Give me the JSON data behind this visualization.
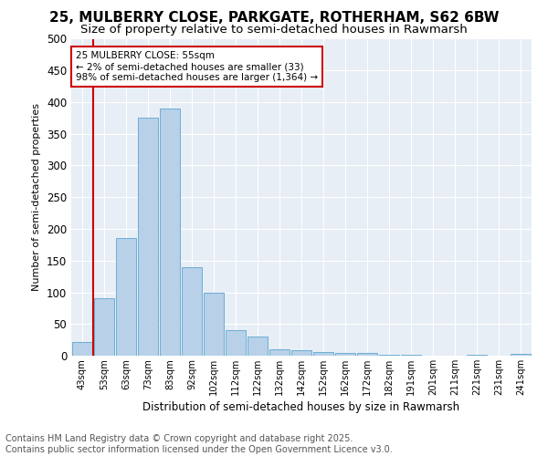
{
  "title1": "25, MULBERRY CLOSE, PARKGATE, ROTHERHAM, S62 6BW",
  "title2": "Size of property relative to semi-detached houses in Rawmarsh",
  "xlabel": "Distribution of semi-detached houses by size in Rawmarsh",
  "ylabel": "Number of semi-detached properties",
  "categories": [
    "43sqm",
    "53sqm",
    "63sqm",
    "73sqm",
    "83sqm",
    "92sqm",
    "102sqm",
    "112sqm",
    "122sqm",
    "132sqm",
    "142sqm",
    "152sqm",
    "162sqm",
    "172sqm",
    "182sqm",
    "191sqm",
    "201sqm",
    "211sqm",
    "221sqm",
    "231sqm",
    "241sqm"
  ],
  "values": [
    22,
    90,
    185,
    375,
    390,
    140,
    100,
    40,
    30,
    10,
    8,
    6,
    5,
    4,
    2,
    1,
    0,
    0,
    1,
    0,
    3
  ],
  "bar_color": "#b8d0e8",
  "bar_edge_color": "#6aaed6",
  "highlight_color": "#cc0000",
  "annotation_title": "25 MULBERRY CLOSE: 55sqm",
  "annotation_line1": "← 2% of semi-detached houses are smaller (33)",
  "annotation_line2": "98% of semi-detached houses are larger (1,364) →",
  "annotation_box_color": "#ffffff",
  "annotation_box_edge": "#cc0000",
  "footer1": "Contains HM Land Registry data © Crown copyright and database right 2025.",
  "footer2": "Contains public sector information licensed under the Open Government Licence v3.0.",
  "ylim": [
    0,
    500
  ],
  "yticks": [
    0,
    50,
    100,
    150,
    200,
    250,
    300,
    350,
    400,
    450,
    500
  ],
  "bg_color": "#e8eef5",
  "title1_fontsize": 11,
  "title2_fontsize": 9.5,
  "footer_fontsize": 7
}
